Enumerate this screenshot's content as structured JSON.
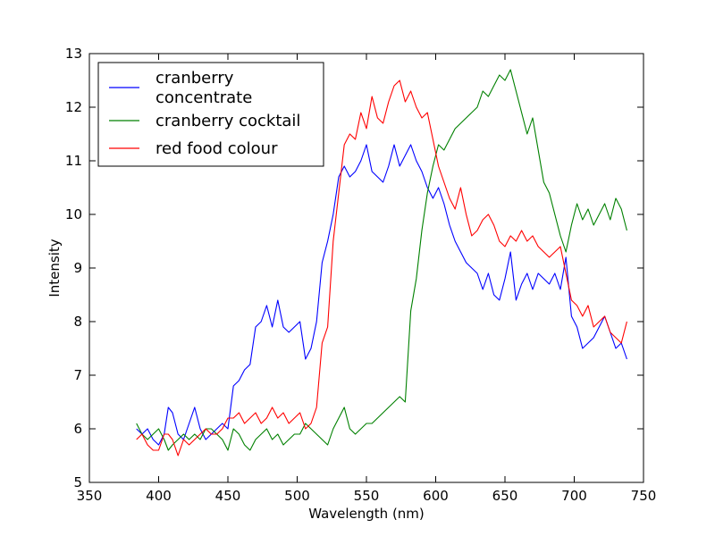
{
  "chart_data": {
    "type": "line",
    "xlabel": "Wavelength (nm)",
    "ylabel": "Intensity",
    "xlim": [
      350,
      750
    ],
    "ylim": [
      5,
      13
    ],
    "xticks": [
      350,
      400,
      450,
      500,
      550,
      600,
      650,
      700,
      750
    ],
    "yticks": [
      5,
      6,
      7,
      8,
      9,
      10,
      11,
      12,
      13
    ],
    "grid": false,
    "legend_position": "top-left",
    "series": [
      {
        "name": "cranberry\nconcentrate",
        "color": "#0000ff",
        "x": [
          384,
          388,
          392,
          396,
          400,
          404,
          407,
          410,
          414,
          418,
          422,
          426,
          430,
          434,
          438,
          442,
          446,
          450,
          454,
          458,
          462,
          466,
          470,
          474,
          478,
          482,
          486,
          490,
          494,
          498,
          502,
          506,
          510,
          514,
          518,
          522,
          526,
          530,
          534,
          538,
          542,
          546,
          550,
          554,
          558,
          562,
          566,
          570,
          574,
          578,
          582,
          586,
          590,
          594,
          598,
          602,
          606,
          610,
          614,
          618,
          622,
          626,
          630,
          634,
          638,
          642,
          646,
          650,
          654,
          658,
          662,
          666,
          670,
          674,
          678,
          682,
          686,
          690,
          694,
          698,
          702,
          706,
          710,
          714,
          718,
          722,
          726,
          730,
          734,
          738
        ],
        "y": [
          6.0,
          5.9,
          6.0,
          5.8,
          5.7,
          5.9,
          6.4,
          6.3,
          5.9,
          5.8,
          6.1,
          6.4,
          6.0,
          5.8,
          5.9,
          6.0,
          6.1,
          6.0,
          6.8,
          6.9,
          7.1,
          7.2,
          7.9,
          8.0,
          8.3,
          7.9,
          8.4,
          7.9,
          7.8,
          7.9,
          8.0,
          7.3,
          7.5,
          8.0,
          9.1,
          9.5,
          10.0,
          10.7,
          10.9,
          10.7,
          10.8,
          11.0,
          11.3,
          10.8,
          10.7,
          10.6,
          10.9,
          11.3,
          10.9,
          11.1,
          11.3,
          11.0,
          10.8,
          10.5,
          10.3,
          10.5,
          10.2,
          9.8,
          9.5,
          9.3,
          9.1,
          9.0,
          8.9,
          8.6,
          8.9,
          8.5,
          8.4,
          8.8,
          9.3,
          8.4,
          8.7,
          8.9,
          8.6,
          8.9,
          8.8,
          8.7,
          8.9,
          8.6,
          9.2,
          8.1,
          7.9,
          7.5,
          7.6,
          7.7,
          7.9,
          8.1,
          7.8,
          7.5,
          7.6,
          7.3
        ]
      },
      {
        "name": "cranberry cocktail",
        "color": "#008000",
        "x": [
          384,
          388,
          392,
          396,
          400,
          404,
          407,
          410,
          414,
          418,
          422,
          426,
          430,
          434,
          438,
          442,
          446,
          450,
          454,
          458,
          462,
          466,
          470,
          474,
          478,
          482,
          486,
          490,
          494,
          498,
          502,
          506,
          510,
          514,
          518,
          522,
          526,
          530,
          534,
          538,
          542,
          546,
          550,
          554,
          558,
          562,
          566,
          570,
          574,
          578,
          582,
          586,
          590,
          594,
          598,
          602,
          606,
          610,
          614,
          618,
          622,
          626,
          630,
          634,
          638,
          642,
          646,
          650,
          654,
          658,
          662,
          666,
          670,
          674,
          678,
          682,
          686,
          690,
          694,
          698,
          702,
          706,
          710,
          714,
          718,
          722,
          726,
          730,
          734,
          738
        ],
        "y": [
          6.1,
          5.9,
          5.8,
          5.9,
          6.0,
          5.8,
          5.6,
          5.7,
          5.8,
          5.9,
          5.8,
          5.9,
          5.8,
          6.0,
          6.0,
          5.9,
          5.8,
          5.6,
          6.0,
          5.9,
          5.7,
          5.6,
          5.8,
          5.9,
          6.0,
          5.8,
          5.9,
          5.7,
          5.8,
          5.9,
          5.9,
          6.1,
          6.0,
          5.9,
          5.8,
          5.7,
          6.0,
          6.2,
          6.4,
          6.0,
          5.9,
          6.0,
          6.1,
          6.1,
          6.2,
          6.3,
          6.4,
          6.5,
          6.6,
          6.5,
          8.2,
          8.8,
          9.7,
          10.4,
          10.9,
          11.3,
          11.2,
          11.4,
          11.6,
          11.7,
          11.8,
          11.9,
          12.0,
          12.3,
          12.2,
          12.4,
          12.6,
          12.5,
          12.7,
          12.3,
          11.9,
          11.5,
          11.8,
          11.2,
          10.6,
          10.4,
          10.0,
          9.6,
          9.3,
          9.8,
          10.2,
          9.9,
          10.1,
          9.8,
          10.0,
          10.2,
          9.9,
          10.3,
          10.1,
          9.7
        ]
      },
      {
        "name": "red food colour",
        "color": "#ff0000",
        "x": [
          384,
          388,
          392,
          396,
          400,
          404,
          407,
          410,
          414,
          418,
          422,
          426,
          430,
          434,
          438,
          442,
          446,
          450,
          454,
          458,
          462,
          466,
          470,
          474,
          478,
          482,
          486,
          490,
          494,
          498,
          502,
          506,
          510,
          514,
          518,
          522,
          526,
          530,
          534,
          538,
          542,
          546,
          550,
          554,
          558,
          562,
          566,
          570,
          574,
          578,
          582,
          586,
          590,
          594,
          598,
          602,
          606,
          610,
          614,
          618,
          622,
          626,
          630,
          634,
          638,
          642,
          646,
          650,
          654,
          658,
          662,
          666,
          670,
          674,
          678,
          682,
          686,
          690,
          694,
          698,
          702,
          706,
          710,
          714,
          718,
          722,
          726,
          730,
          734,
          738
        ],
        "y": [
          5.8,
          5.9,
          5.7,
          5.6,
          5.6,
          5.9,
          5.9,
          5.8,
          5.5,
          5.8,
          5.7,
          5.8,
          5.9,
          6.0,
          5.9,
          5.9,
          6.0,
          6.2,
          6.2,
          6.3,
          6.1,
          6.2,
          6.3,
          6.1,
          6.2,
          6.4,
          6.2,
          6.3,
          6.1,
          6.2,
          6.3,
          6.0,
          6.1,
          6.4,
          7.6,
          7.9,
          9.5,
          10.4,
          11.3,
          11.5,
          11.4,
          11.9,
          11.6,
          12.2,
          11.8,
          11.7,
          12.1,
          12.4,
          12.5,
          12.1,
          12.3,
          12.0,
          11.8,
          11.9,
          11.4,
          10.9,
          10.6,
          10.3,
          10.1,
          10.5,
          10.0,
          9.6,
          9.7,
          9.9,
          10.0,
          9.8,
          9.5,
          9.4,
          9.6,
          9.5,
          9.7,
          9.5,
          9.6,
          9.4,
          9.3,
          9.2,
          9.3,
          9.4,
          8.9,
          8.4,
          8.3,
          8.1,
          8.3,
          7.9,
          8.0,
          8.1,
          7.8,
          7.7,
          7.6,
          8.0
        ]
      }
    ]
  }
}
